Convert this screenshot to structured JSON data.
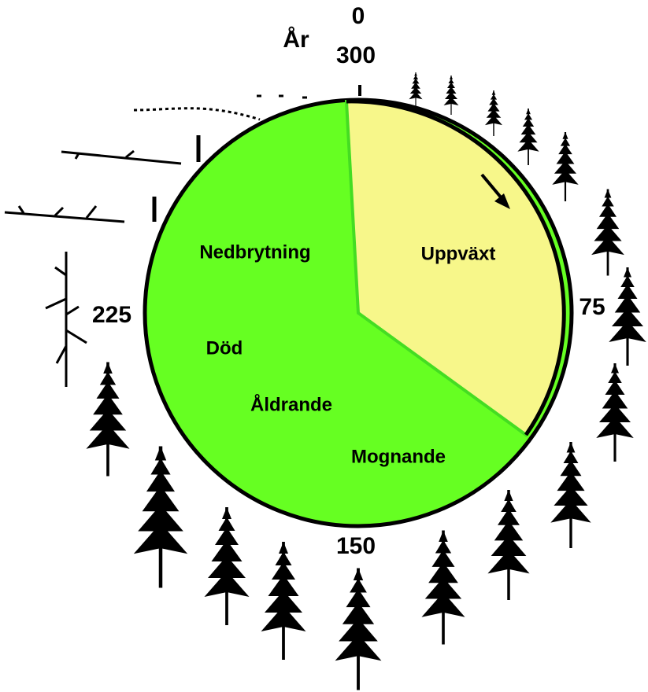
{
  "year_label": "År",
  "scale_labels": {
    "start": "0",
    "end": "300",
    "quarter": "75",
    "half": "150",
    "three_quarter": "225"
  },
  "phases": [
    "Uppväxt",
    "Nedbrytning",
    "Död",
    "Åldrande",
    "Mognande"
  ]
}
